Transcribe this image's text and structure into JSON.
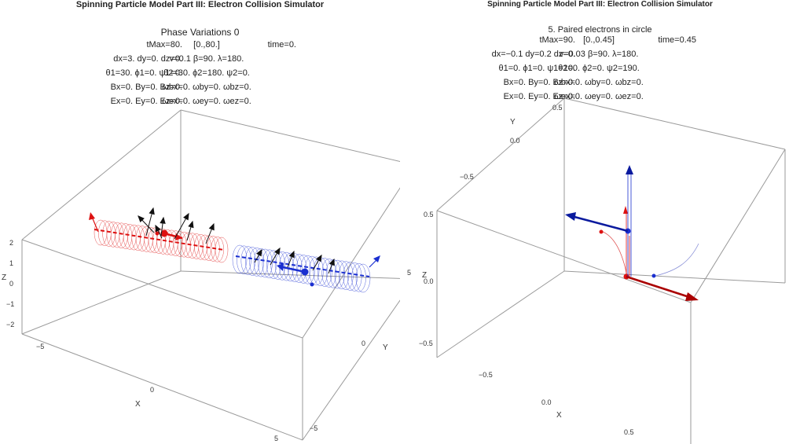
{
  "left": {
    "title": "Spinning Particle Model Part III: Electron Collision Simulator",
    "subtitle": "Phase Variations 0",
    "params": [
      [
        "tMax=80.",
        "[0.,80.]",
        "time=0."
      ],
      [
        "dx=3. dy=0. dz=0.",
        "v=0.1 β=90. λ=180.",
        ""
      ],
      [
        "θ1=30. ϕ1=0. ψ1=0.",
        "θ2=30. ϕ2=180. ψ2=0.",
        ""
      ],
      [
        "Bx=0. By=0. Bz=0.",
        "ωbx=0. ωby=0. ωbz=0.",
        ""
      ],
      [
        "Ex=0. Ey=0. Ez=0.",
        "ωex=0. ωey=0. ωez=0.",
        ""
      ]
    ],
    "axes": {
      "x_label": "X",
      "y_label": "Y",
      "z_label": "Z",
      "z_ticks": [
        "2",
        "1",
        "0",
        "−1",
        "−2"
      ],
      "x_ticks": [
        "−5",
        "0",
        "5"
      ],
      "y_ticks": [
        "5",
        "0",
        "−5"
      ]
    }
  },
  "right": {
    "title": "Spinning Particle Model Part III: Electron Collision Simulator",
    "subtitle": "5. Paired electrons in circle",
    "params": [
      [
        "tMax=90.",
        "[0.,0.45]",
        "time=0.45"
      ],
      [
        "dx=−0.1 dy=0.2 dz=0.",
        "v=0.03 β=90. λ=180.",
        ""
      ],
      [
        "θ1=0. ϕ1=0. ψ1=10.",
        "θ2=0. ϕ2=0. ψ2=190.",
        ""
      ],
      [
        "Bx=0. By=0. Bz=0.",
        "ωbx=0. ωby=0. ωbz=0.",
        ""
      ],
      [
        "Ex=0. Ey=0. Ez=0.",
        "ωex=0. ωey=0. ωez=0.",
        ""
      ]
    ],
    "axes": {
      "x_label": "X",
      "y_label": "Y",
      "z_label": "Z",
      "y_ticks": [
        "0.5",
        "0.0",
        "−0.5"
      ],
      "z_ticks": [
        "0.5",
        "0.0",
        "−0.5"
      ],
      "x_ticks": [
        "−0.5",
        "0.0",
        "0.5"
      ]
    }
  },
  "colors": {
    "electron1": "#dd1111",
    "electron2": "#1a2fd0",
    "dark_red": "#aa0000",
    "dark_blue": "#0a1a9e",
    "spin": "#111111",
    "box": "#9a9a9a"
  }
}
